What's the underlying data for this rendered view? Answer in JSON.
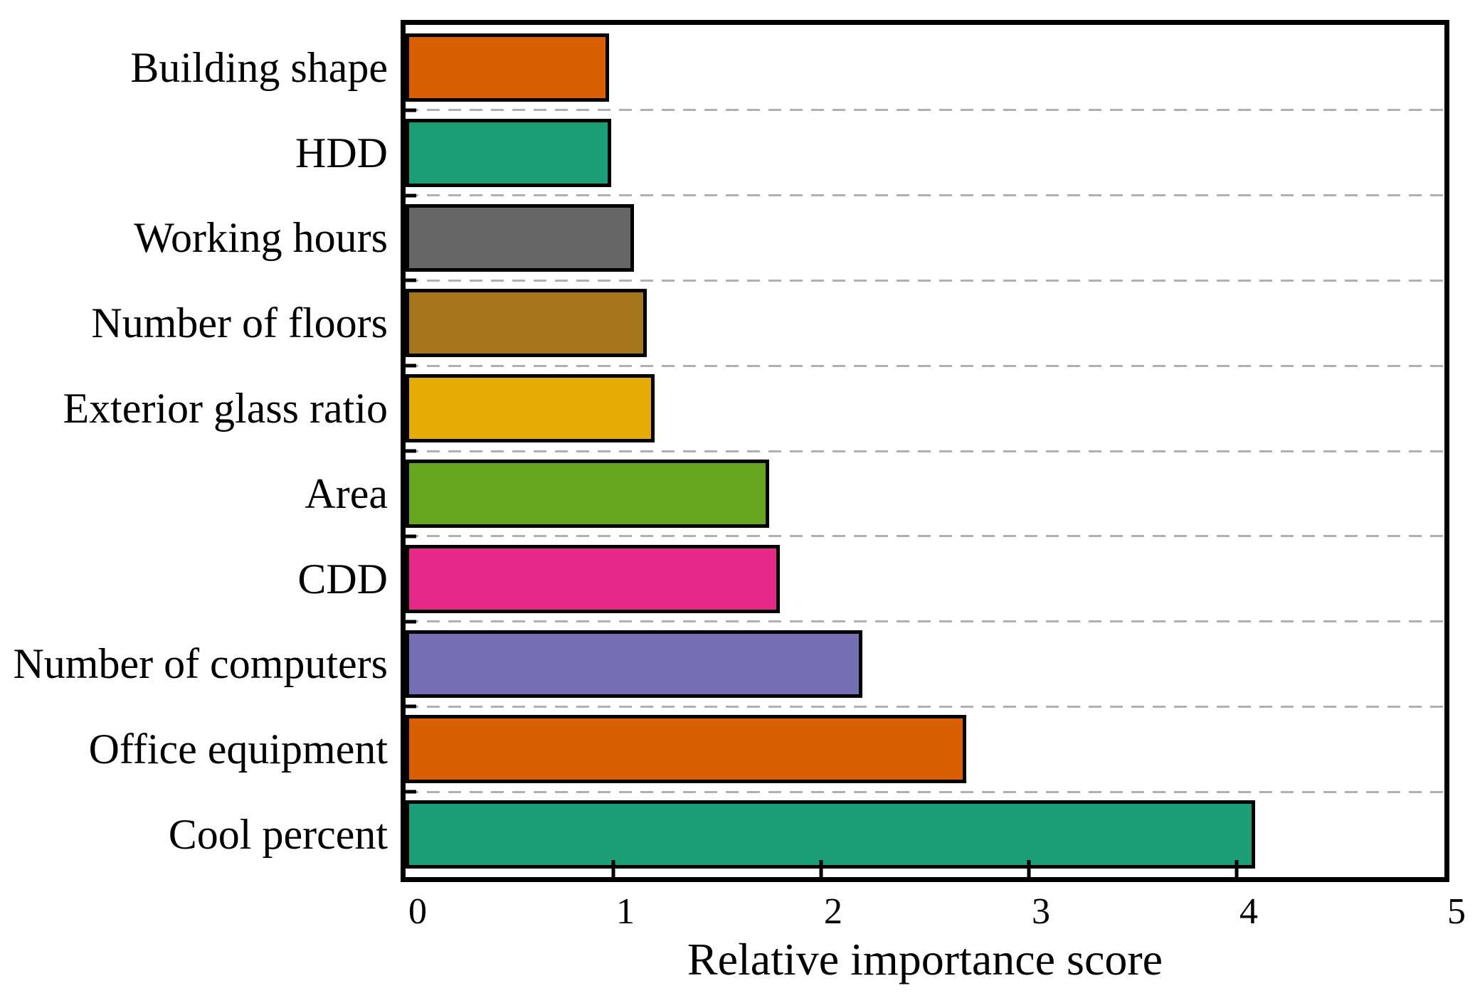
{
  "chart_data": {
    "type": "bar",
    "orientation": "horizontal",
    "title": "",
    "xlabel": "Relative importance score",
    "ylabel": "",
    "xlim": [
      0,
      5
    ],
    "x_tick_labels": [
      "0",
      "1",
      "2",
      "3",
      "4",
      "5"
    ],
    "grid": "dashed horizontal separators between category bands",
    "legend": "none",
    "categories": [
      "Building shape",
      "HDD",
      "Working hours",
      "Number of floors",
      "Exterior glass ratio",
      "Area",
      "CDD",
      "Number of computers",
      "Office equipment",
      "Cool percent"
    ],
    "values": [
      0.98,
      0.99,
      1.1,
      1.16,
      1.2,
      1.75,
      1.8,
      2.2,
      2.7,
      4.09
    ],
    "bar_colors": [
      "#d95f02",
      "#1b9e77",
      "#666666",
      "#a6761d",
      "#e6ab02",
      "#66a61e",
      "#e7298a",
      "#7570b3",
      "#d95f02",
      "#1b9e77"
    ],
    "bar_edge_color": "#000000",
    "frame_color": "#000000",
    "gridline_color": "#b0b0b0",
    "background_color": "#ffffff"
  }
}
